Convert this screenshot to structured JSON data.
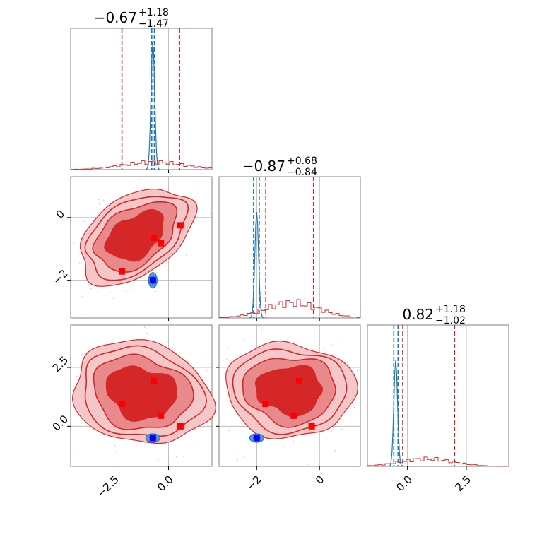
{
  "chart_data": {
    "type": "corner",
    "parameters": 3,
    "grid": true,
    "colors": {
      "primary": "#d62728",
      "primary_fill_dark": "#d62728",
      "primary_fill_mid": "#e88a8c",
      "primary_fill_light": "#f4c8c9",
      "secondary": "#1f77b4",
      "secondary_marker": "#0000ff",
      "grid": "#b0b0b0",
      "axis": "#808080"
    },
    "titles": [
      {
        "main": "−0.67",
        "sup": "+1.18",
        "sub": "−1.47"
      },
      {
        "main": "−0.87",
        "sup": "+0.68",
        "sub": "−0.84"
      },
      {
        "main": "0.82",
        "sup": "+1.18",
        "sub": "−1.02"
      }
    ],
    "axis_ranges": {
      "p0": [
        -4.5,
        2.0
      ],
      "p1": [
        -3.2,
        1.3
      ],
      "p2": [
        -1.7,
        4.3
      ]
    },
    "ticks": {
      "p0": [
        {
          "value": -2.5,
          "label": "−2.5"
        },
        {
          "value": 0.0,
          "label": "0.0"
        }
      ],
      "p1": [
        {
          "value": -2,
          "label": "−2"
        },
        {
          "value": 0,
          "label": "0"
        }
      ],
      "p2": [
        {
          "value": 0.0,
          "label": "0.0"
        },
        {
          "value": 2.5,
          "label": "2.5"
        }
      ]
    },
    "quantile_lines": {
      "primary": {
        "p0": [
          -2.14,
          0.51
        ],
        "p1": [
          -1.71,
          -0.19
        ],
        "p2": [
          -0.2,
          2.0
        ]
      },
      "secondary": {
        "p0": [
          -0.77,
          -0.65
        ],
        "p1": [
          -2.1,
          -1.92
        ],
        "p2": [
          -0.58,
          -0.4
        ]
      }
    },
    "secondary_peaks": {
      "p0": -0.72,
      "p1": -2.0,
      "p2": -0.5
    },
    "markers": {
      "p0_p1": [
        [
          -0.67,
          -0.65
        ],
        [
          -0.35,
          -0.82
        ],
        [
          0.55,
          -0.25
        ],
        [
          -2.14,
          -1.72
        ]
      ],
      "p0_p2": [
        [
          -0.67,
          1.92
        ],
        [
          -2.14,
          0.95
        ],
        [
          -0.35,
          0.45
        ],
        [
          0.55,
          0.0
        ]
      ],
      "p1_p2": [
        [
          -0.65,
          1.92
        ],
        [
          -1.72,
          0.95
        ],
        [
          -0.82,
          0.45
        ],
        [
          -0.25,
          0.0
        ]
      ]
    },
    "secondary_markers": {
      "p0_p1": [
        -0.72,
        -2.0
      ],
      "p0_p2": [
        -0.72,
        -0.5
      ],
      "p1_p2": [
        -2.0,
        -0.5
      ]
    }
  }
}
